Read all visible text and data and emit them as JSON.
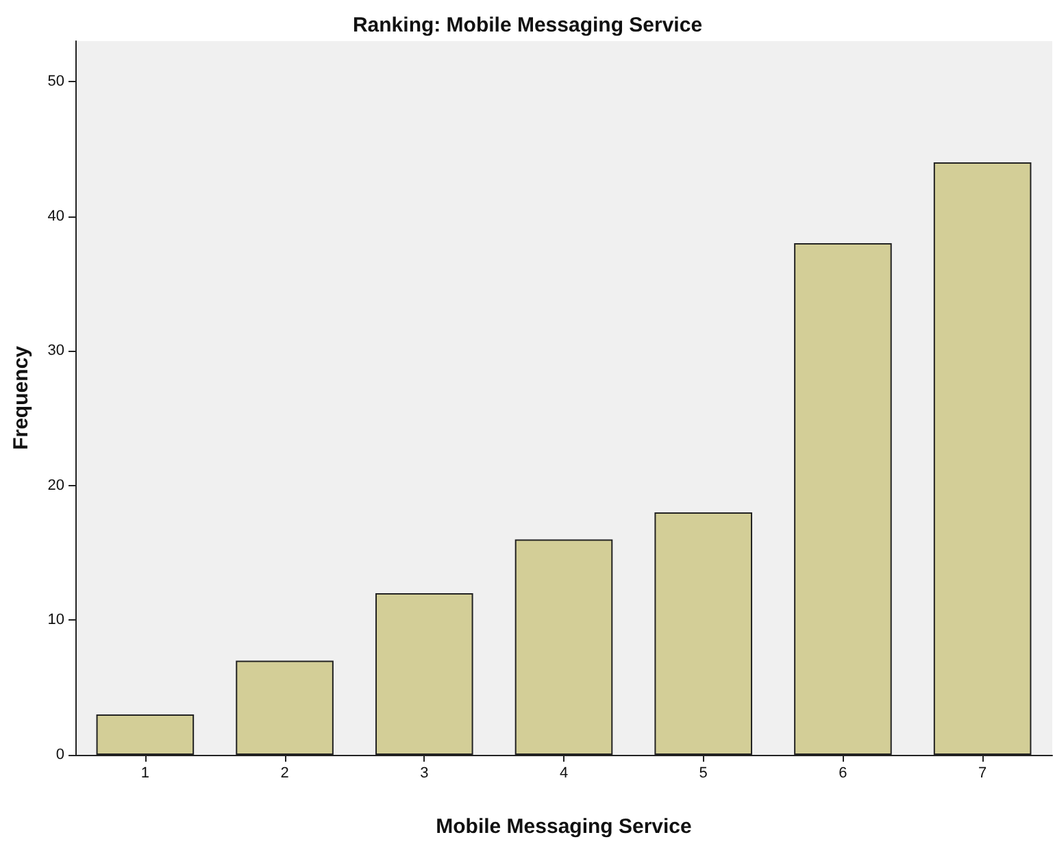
{
  "chart_data": {
    "type": "bar",
    "title": "Ranking: Mobile Messaging Service",
    "xlabel": "Mobile Messaging Service",
    "ylabel": "Frequency",
    "categories": [
      "1",
      "2",
      "3",
      "4",
      "5",
      "6",
      "7"
    ],
    "values": [
      3,
      7,
      12,
      16,
      18,
      38,
      44
    ],
    "color": "#d3ce97",
    "ylim": [
      0,
      53
    ],
    "yticks": [
      0,
      10,
      20,
      30,
      40,
      50
    ],
    "grid": false
  }
}
